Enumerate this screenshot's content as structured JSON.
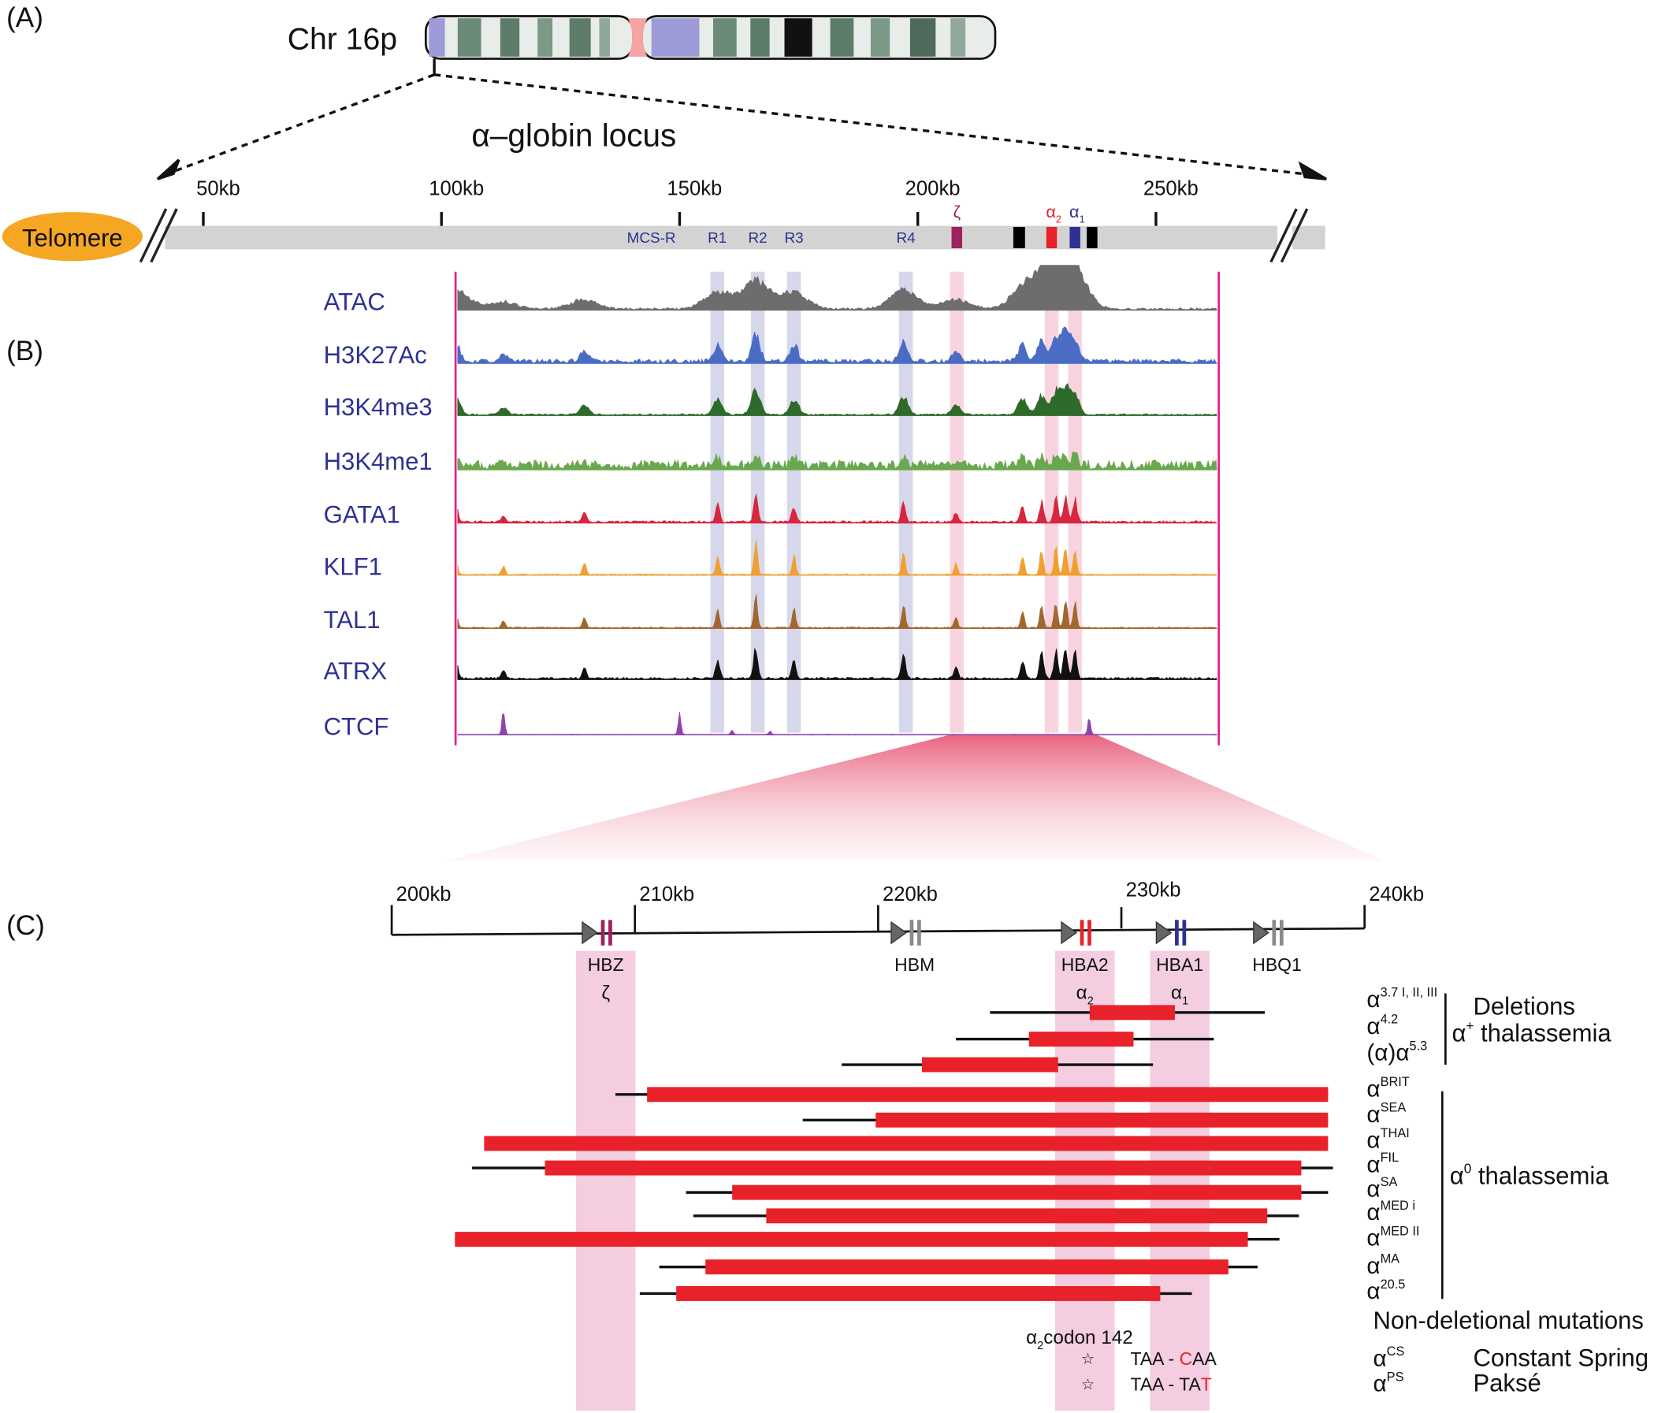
{
  "panel_labels": [
    "(A)",
    "(B)",
    "(C)"
  ],
  "chromosome": "Chr 16p",
  "locus_title": "α–globin locus",
  "telomere": "Telomere",
  "locus_axis": {
    "ticks": [
      {
        "value": 50,
        "label": "50kb"
      },
      {
        "value": 100,
        "label": "100kb"
      },
      {
        "value": 150,
        "label": "150kb"
      },
      {
        "value": 200,
        "label": "200kb"
      },
      {
        "value": 250,
        "label": "250kb"
      }
    ]
  },
  "regions": [
    {
      "label": "MCS-R",
      "kb": 146.3
    },
    {
      "label": "R1",
      "kb": 157.9
    },
    {
      "label": "R2",
      "kb": 166.4
    },
    {
      "label": "R3",
      "kb": 174.0
    },
    {
      "label": "R4",
      "kb": 197.5
    }
  ],
  "genes_a": [
    {
      "base": "ζ",
      "kb": 208.2,
      "color": "#a0215f"
    },
    {
      "base": "α",
      "sub": "2",
      "kb": 228.1,
      "color": "#e8212a"
    },
    {
      "base": "α",
      "sub": "1",
      "kb": 233.0,
      "color": "#2e3192"
    }
  ],
  "tracks": [
    {
      "name": "ATAC",
      "color": "#6d6d6d"
    },
    {
      "name": "H3K27Ac",
      "color": "#4a6cc4"
    },
    {
      "name": "H3K4me3",
      "color": "#2e6b2a"
    },
    {
      "name": "H3K4me1",
      "color": "#6aa84f"
    },
    {
      "name": "GATA1",
      "color": "#d7263d"
    },
    {
      "name": "KLF1",
      "color": "#f0a030"
    },
    {
      "name": "TAL1",
      "color": "#a0682e"
    },
    {
      "name": "ATRX",
      "color": "#111111"
    },
    {
      "name": "CTCF",
      "color": "#8e44ad"
    }
  ],
  "zoom_axis": {
    "ticks": [
      {
        "value": 200,
        "label": "200kb"
      },
      {
        "value": 210,
        "label": "210kb"
      },
      {
        "value": 220,
        "label": "220kb"
      },
      {
        "value": 230,
        "label": "230kb"
      },
      {
        "value": 240,
        "label": "240kb"
      }
    ]
  },
  "genes": [
    {
      "name": "HBZ",
      "greek": {
        "base": "ζ"
      },
      "kb": 208.8,
      "color": "#a0215f",
      "band": true
    },
    {
      "name": "HBM",
      "kb": 221.5,
      "color": "#8a8a8a"
    },
    {
      "name": "HBA2",
      "greek": {
        "base": "α",
        "sub": "2"
      },
      "kb": 228.5,
      "color": "#e8212a",
      "band": true
    },
    {
      "name": "HBA1",
      "greek": {
        "base": "α",
        "sub": "1"
      },
      "kb": 232.4,
      "color": "#2e3192",
      "band": true
    },
    {
      "name": "HBQ1",
      "kb": 236.4,
      "color": "#8a8a8a"
    }
  ],
  "deletions": [
    {
      "name": {
        "base": "α",
        "sup": "3.7 I, II, III"
      },
      "extent": [
        224.6,
        235.9
      ],
      "deleted": [
        228.7,
        232.2
      ]
    },
    {
      "name": {
        "base": "α",
        "sup": "4.2"
      },
      "extent": [
        223.2,
        233.8
      ],
      "deleted": [
        226.2,
        230.5
      ]
    },
    {
      "name": {
        "pre": "(α)",
        "base": "α",
        "sup": "5.3"
      },
      "extent": [
        218.5,
        231.3
      ],
      "deleted": [
        221.8,
        227.4
      ]
    },
    {
      "name": {
        "base": "α",
        "sup": "BRIT"
      },
      "extent": [
        209.2,
        238.5
      ],
      "deleted": [
        210.5,
        238.5
      ]
    },
    {
      "name": {
        "base": "α",
        "sup": "SEA"
      },
      "extent": [
        216.9,
        238.5
      ],
      "deleted": [
        219.9,
        238.5
      ]
    },
    {
      "name": {
        "base": "α",
        "sup": "THAI"
      },
      "deleted": [
        203.8,
        238.5
      ]
    },
    {
      "name": {
        "base": "α",
        "sup": "FIL"
      },
      "extent": [
        203.3,
        238.7
      ],
      "deleted": [
        206.3,
        237.4
      ]
    },
    {
      "name": {
        "base": "α",
        "sup": "SA"
      },
      "extent": [
        212.1,
        238.5
      ],
      "deleted": [
        214.0,
        237.4
      ]
    },
    {
      "name": {
        "base": "α",
        "sup": "MED i"
      },
      "extent": [
        212.4,
        237.3
      ],
      "deleted": [
        215.4,
        236.0
      ]
    },
    {
      "name": {
        "base": "α",
        "sup": "MED II"
      },
      "extent": [
        202.6,
        236.5
      ],
      "deleted": [
        202.6,
        235.2
      ]
    },
    {
      "name": {
        "base": "α",
        "sup": "MA"
      },
      "extent": [
        211.0,
        235.6
      ],
      "deleted": [
        212.9,
        234.4
      ]
    },
    {
      "name": {
        "base": "α",
        "sup": "20.5"
      },
      "extent": [
        210.2,
        232.9
      ],
      "deleted": [
        211.7,
        231.6
      ]
    }
  ],
  "groups": {
    "deletions": "Deletions",
    "alpha_plus": {
      "base": "α",
      "sup": "+",
      "rest": " thalassemia"
    },
    "alpha_zero": {
      "base": "α",
      "sup": "0",
      "rest": " thalassemia"
    }
  },
  "mutations": {
    "title": "Non-deletional mutations",
    "codon": {
      "base": "α",
      "sub": "2",
      "rest": "codon 142"
    },
    "items": [
      {
        "name": {
          "base": "α",
          "sup": "CS"
        },
        "label": "Constant Spring",
        "change": {
          "pre": "TAA - ",
          "mut": "C",
          "post": "AA"
        }
      },
      {
        "name": {
          "base": "α",
          "sup": "PS"
        },
        "label": "Paksé",
        "change": {
          "pre": "TAA - TA",
          "mut": "T"
        }
      }
    ]
  }
}
